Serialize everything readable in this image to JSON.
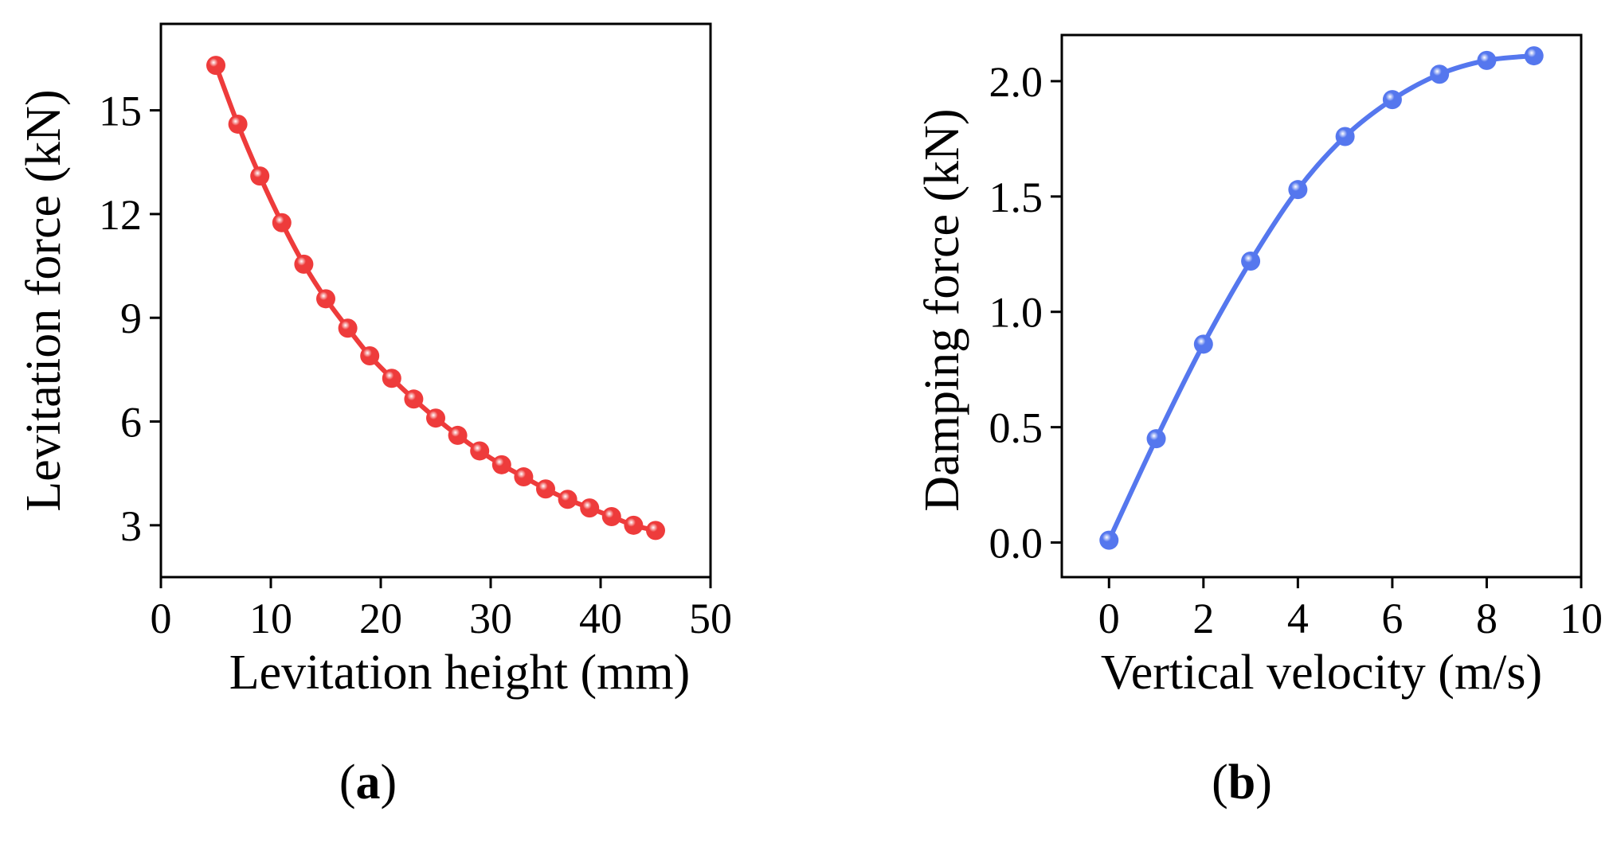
{
  "chart_data": [
    {
      "type": "line",
      "panel_label": "a",
      "xlabel": "Levitation height (mm)",
      "ylabel": "Levitation force (kN)",
      "xlim": [
        0,
        50
      ],
      "ylim": [
        1.5,
        17.5
      ],
      "xticks": [
        0,
        10,
        20,
        30,
        40,
        50
      ],
      "yticks": [
        3,
        6,
        9,
        12,
        15
      ],
      "color": "#ee3b3b",
      "series": [
        {
          "name": "Levitation force",
          "x": [
            5,
            7,
            9,
            11,
            13,
            15,
            17,
            19,
            21,
            23,
            25,
            27,
            29,
            31,
            33,
            35,
            37,
            39,
            41,
            43,
            45
          ],
          "y": [
            16.3,
            14.6,
            13.1,
            11.75,
            10.55,
            9.55,
            8.7,
            7.9,
            7.25,
            6.65,
            6.1,
            5.6,
            5.15,
            4.75,
            4.4,
            4.05,
            3.75,
            3.5,
            3.25,
            3.0,
            2.85
          ]
        }
      ]
    },
    {
      "type": "line",
      "panel_label": "b",
      "xlabel": "Vertical velocity (m/s)",
      "ylabel": "Damping force (kN)",
      "xlim": [
        -1,
        10
      ],
      "ylim": [
        -0.15,
        2.2
      ],
      "xticks": [
        0,
        2,
        4,
        6,
        8,
        10
      ],
      "yticks": [
        0.0,
        0.5,
        1.0,
        1.5,
        2.0
      ],
      "ytick_labels": [
        "0.0",
        "0.5",
        "1.0",
        "1.5",
        "2.0"
      ],
      "color": "#5577ee",
      "series": [
        {
          "name": "Damping force",
          "x": [
            0,
            1,
            2,
            3,
            4,
            5,
            6,
            7,
            8,
            9
          ],
          "y": [
            0.01,
            0.45,
            0.86,
            1.22,
            1.53,
            1.76,
            1.92,
            2.03,
            2.09,
            2.11
          ]
        }
      ]
    }
  ],
  "captions": {
    "a": {
      "open": "(",
      "letter": "a",
      "close": ")"
    },
    "b": {
      "open": "(",
      "letter": "b",
      "close": ")"
    }
  }
}
